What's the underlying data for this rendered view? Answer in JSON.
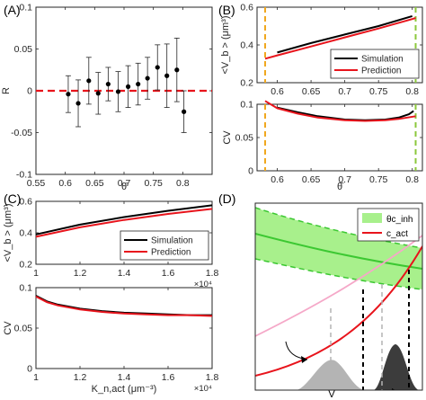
{
  "figure_labels": {
    "a": "(A)",
    "b": "(B)",
    "c": "(C)",
    "d": "(D)"
  },
  "colors": {
    "simulation": "#000000",
    "prediction": "#e8141c",
    "orange_vline": "#f0a81e",
    "green_vline": "#8cc83c",
    "band_fill": "#a8f08c",
    "band_line": "#3cc832",
    "pink": "#f5a8c8",
    "dist_light": "#b4b4b4",
    "dist_dark": "#3c3c3c"
  },
  "chart_data": [
    {
      "panel": "A",
      "type": "scatter",
      "xlabel": "θ̄",
      "ylabel": "R",
      "xlim": [
        0.55,
        0.85
      ],
      "ylim": [
        -0.1,
        0.1
      ],
      "xticks": [
        "0.55",
        "0.6",
        "0.65",
        "0.7",
        "0.75",
        "0.8"
      ],
      "xtick_values": [
        0.55,
        0.6,
        0.65,
        0.7,
        0.75,
        0.8
      ],
      "yticks": [
        "-0.1",
        "-0.05",
        "0",
        "0.05",
        "0.1"
      ],
      "ytick_values": [
        -0.1,
        -0.05,
        0,
        0.05,
        0.1
      ],
      "reference_line": {
        "y": 0,
        "style": "dashed",
        "color": "#e8141c"
      },
      "points": [
        {
          "x": 0.605,
          "y": -0.004,
          "err": 0.022
        },
        {
          "x": 0.622,
          "y": -0.015,
          "err": 0.028
        },
        {
          "x": 0.64,
          "y": 0.012,
          "err": 0.028
        },
        {
          "x": 0.656,
          "y": -0.003,
          "err": 0.025
        },
        {
          "x": 0.673,
          "y": 0.008,
          "err": 0.02
        },
        {
          "x": 0.69,
          "y": -0.001,
          "err": 0.024
        },
        {
          "x": 0.707,
          "y": 0.005,
          "err": 0.025
        },
        {
          "x": 0.724,
          "y": 0.008,
          "err": 0.025
        },
        {
          "x": 0.74,
          "y": 0.015,
          "err": 0.025
        },
        {
          "x": 0.757,
          "y": 0.028,
          "err": 0.027
        },
        {
          "x": 0.773,
          "y": 0.018,
          "err": 0.038
        },
        {
          "x": 0.79,
          "y": 0.025,
          "err": 0.038
        },
        {
          "x": 0.802,
          "y": -0.025,
          "err": 0.025
        }
      ]
    },
    {
      "panel": "B-top",
      "type": "line",
      "xlabel": "",
      "ylabel": "<V_b > (μm³)",
      "xlim": [
        0.57,
        0.815
      ],
      "ylim": [
        0.2,
        0.6
      ],
      "xticks": [
        "0.6",
        "0.65",
        "0.7",
        "0.75",
        "0.8"
      ],
      "xtick_values": [
        0.6,
        0.65,
        0.7,
        0.75,
        0.8
      ],
      "yticks": [
        "0.2",
        "0.4",
        "0.6"
      ],
      "ytick_values": [
        0.2,
        0.4,
        0.6
      ],
      "vlines": [
        {
          "x": 0.582,
          "color": "#f0a81e"
        },
        {
          "x": 0.805,
          "color": "#8cc83c"
        }
      ],
      "legend": "bottom-right",
      "series": [
        {
          "name": "Simulation",
          "x": [
            0.6,
            0.65,
            0.7,
            0.75,
            0.8
          ],
          "values": [
            0.36,
            0.41,
            0.455,
            0.5,
            0.553
          ]
        },
        {
          "name": "Prediction",
          "x": [
            0.582,
            0.6,
            0.65,
            0.7,
            0.75,
            0.8,
            0.805
          ],
          "values": [
            0.327,
            0.345,
            0.392,
            0.44,
            0.487,
            0.537,
            0.543
          ]
        }
      ]
    },
    {
      "panel": "B-bottom",
      "type": "line",
      "xlabel": "θ̄",
      "ylabel": "CV",
      "xlim": [
        0.57,
        0.815
      ],
      "ylim": [
        0,
        0.1
      ],
      "xticks": [
        "0.6",
        "0.65",
        "0.7",
        "0.75",
        "0.8"
      ],
      "xtick_values": [
        0.6,
        0.65,
        0.7,
        0.75,
        0.8
      ],
      "yticks": [
        "0",
        "0.05",
        "0.1"
      ],
      "ytick_values": [
        0,
        0.05,
        0.1
      ],
      "vlines": [
        {
          "x": 0.582,
          "color": "#f0a81e"
        },
        {
          "x": 0.805,
          "color": "#8cc83c"
        }
      ],
      "series": [
        {
          "name": "Simulation",
          "x": [
            0.6,
            0.63,
            0.66,
            0.7,
            0.73,
            0.76,
            0.78,
            0.795,
            0.802
          ],
          "values": [
            0.095,
            0.088,
            0.082,
            0.077,
            0.076,
            0.077,
            0.08,
            0.085,
            0.09
          ]
        },
        {
          "name": "Prediction",
          "x": [
            0.582,
            0.6,
            0.63,
            0.66,
            0.7,
            0.73,
            0.76,
            0.78,
            0.805
          ],
          "values": [
            0.105,
            0.094,
            0.086,
            0.08,
            0.076,
            0.075,
            0.076,
            0.078,
            0.082
          ]
        }
      ]
    },
    {
      "panel": "C-top",
      "type": "line",
      "xlabel": "",
      "ylabel": "<V_b > (μm³)",
      "xlim": [
        10000,
        18000
      ],
      "ylim": [
        0.2,
        0.6
      ],
      "xticks": [
        "1",
        "1.2",
        "1.4",
        "1.6",
        "1.8"
      ],
      "xtick_values": [
        10000,
        12000,
        14000,
        16000,
        18000
      ],
      "x_multiplier": "×10⁴",
      "yticks": [
        "0.2",
        "0.4",
        "0.6"
      ],
      "ytick_values": [
        0.2,
        0.4,
        0.6
      ],
      "legend": "bottom-right",
      "series": [
        {
          "name": "Simulation",
          "x": [
            10000,
            12000,
            14000,
            16000,
            18000
          ],
          "values": [
            0.39,
            0.452,
            0.5,
            0.54,
            0.575
          ]
        },
        {
          "name": "Prediction",
          "x": [
            10000,
            12000,
            14000,
            16000,
            18000
          ],
          "values": [
            0.375,
            0.435,
            0.482,
            0.52,
            0.552
          ]
        }
      ]
    },
    {
      "panel": "C-bottom",
      "type": "line",
      "xlabel": "K_n,act (μm⁻³)",
      "ylabel": "CV",
      "xlim": [
        10000,
        18000
      ],
      "ylim": [
        0,
        0.1
      ],
      "xticks": [
        "1",
        "1.2",
        "1.4",
        "1.6",
        "1.8"
      ],
      "xtick_values": [
        10000,
        12000,
        14000,
        16000,
        18000
      ],
      "x_multiplier": "×10⁴",
      "yticks": [
        "0",
        "0.05",
        "0.1"
      ],
      "ytick_values": [
        0,
        0.05,
        0.1
      ],
      "series": [
        {
          "name": "Simulation",
          "x": [
            10000,
            10500,
            11000,
            12000,
            13000,
            14000,
            15000,
            16000,
            17000,
            18000
          ],
          "values": [
            0.09,
            0.083,
            0.079,
            0.074,
            0.071,
            0.069,
            0.068,
            0.067,
            0.066,
            0.066
          ]
        },
        {
          "name": "Prediction",
          "x": [
            10000,
            10500,
            11000,
            12000,
            13000,
            14000,
            15000,
            16000,
            17000,
            18000
          ],
          "values": [
            0.089,
            0.082,
            0.078,
            0.073,
            0.07,
            0.068,
            0.067,
            0.066,
            0.066,
            0.065
          ]
        }
      ]
    },
    {
      "panel": "D",
      "type": "line",
      "xlabel": "V",
      "ylabel": "",
      "legend_entries": [
        "θc_inh",
        "c_act"
      ]
    }
  ]
}
